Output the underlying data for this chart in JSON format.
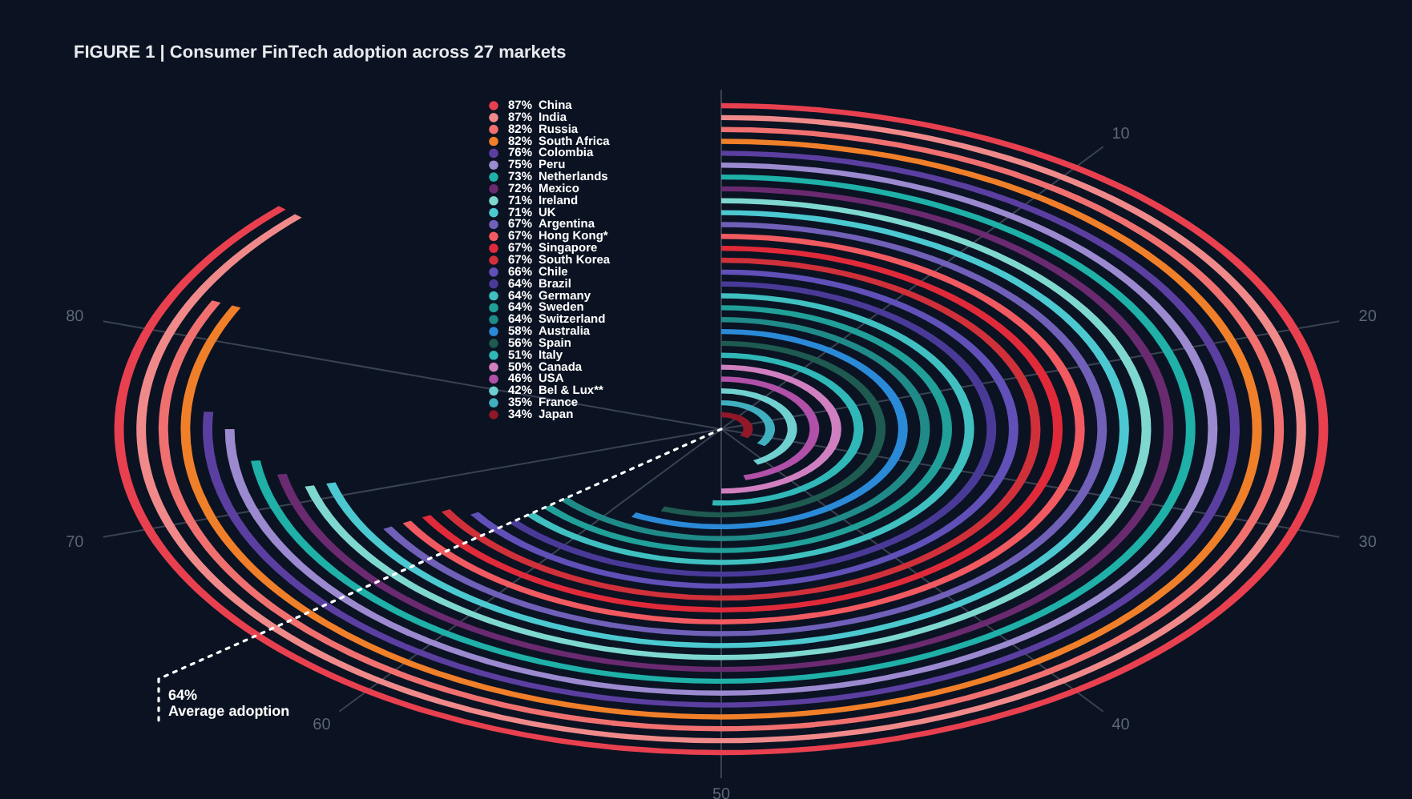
{
  "chart_data": {
    "type": "other",
    "title": "FIGURE 1 | Consumer FinTech adoption across 27 markets",
    "categories": [
      "China",
      "India",
      "Russia",
      "South Africa",
      "Colombia",
      "Peru",
      "Netherlands",
      "Mexico",
      "Ireland",
      "UK",
      "Argentina",
      "Hong Kong*",
      "Singapore",
      "South Korea",
      "Chile",
      "Brazil",
      "Germany",
      "Sweden",
      "Switzerland",
      "Australia",
      "Spain",
      "Italy",
      "Canada",
      "USA",
      "Bel & Lux**",
      "France",
      "Japan"
    ],
    "values": [
      87,
      87,
      82,
      82,
      76,
      75,
      73,
      72,
      71,
      71,
      67,
      67,
      67,
      67,
      66,
      64,
      64,
      64,
      64,
      58,
      56,
      51,
      50,
      46,
      42,
      35,
      34
    ],
    "value_labels": [
      "87%",
      "87%",
      "82%",
      "82%",
      "76%",
      "75%",
      "73%",
      "72%",
      "71%",
      "71%",
      "67%",
      "67%",
      "67%",
      "67%",
      "66%",
      "64%",
      "64%",
      "64%",
      "64%",
      "58%",
      "56%",
      "51%",
      "50%",
      "46%",
      "42%",
      "35%",
      "34%"
    ],
    "colors": [
      "#e8404f",
      "#f08a8a",
      "#f07070",
      "#f07f2a",
      "#5b3fa0",
      "#9b8ad0",
      "#1fb0a8",
      "#6a2a70",
      "#7fd8d0",
      "#4cc8d0",
      "#7060b8",
      "#f05a60",
      "#e02a3a",
      "#d0303a",
      "#6050b8",
      "#4a3a98",
      "#40c0c0",
      "#20a098",
      "#208a88",
      "#2a8ad8",
      "#1e5a50",
      "#30b8b8",
      "#d080c0",
      "#b050a8",
      "#70d0d0",
      "#40b0c0",
      "#901828"
    ],
    "annotations": [
      "10",
      "20",
      "30",
      "40",
      "50",
      "60",
      "70",
      "80",
      "64% Average adoption"
    ]
  }
}
